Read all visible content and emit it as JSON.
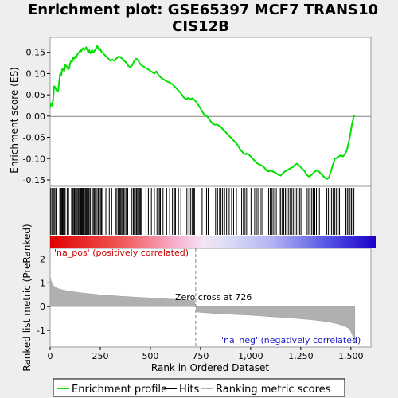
{
  "chart_data": [
    {
      "panel": "enrichment",
      "type": "line",
      "title": "Enrichment plot: GSE65397 MCF7 TRANS10 CIS12B",
      "title_lines": [
        "Enrichment plot: GSE65397 MCF7 TRANS10",
        "CIS12B"
      ],
      "ylabel": "Enrichment score (ES)",
      "xlim": [
        0,
        1600
      ],
      "ylim": [
        -0.165,
        0.185
      ],
      "yticks": [
        -0.15,
        -0.1,
        -0.05,
        0.0,
        0.05,
        0.1,
        0.15
      ],
      "ytick_labels": [
        "-0.15",
        "-0.10",
        "-0.05",
        "0.00",
        "0.05",
        "0.10",
        "0.15"
      ],
      "grid": false,
      "series": [
        {
          "name": "Enrichment profile",
          "color": "#00e000",
          "x": [
            0,
            5,
            10,
            15,
            20,
            25,
            30,
            35,
            40,
            45,
            50,
            55,
            60,
            65,
            70,
            75,
            80,
            85,
            90,
            95,
            100,
            105,
            110,
            115,
            120,
            125,
            130,
            135,
            140,
            145,
            150,
            155,
            160,
            165,
            170,
            175,
            180,
            185,
            190,
            195,
            200,
            205,
            210,
            215,
            220,
            225,
            230,
            235,
            240,
            245,
            250,
            255,
            260,
            265,
            270,
            280,
            290,
            300,
            310,
            320,
            330,
            340,
            350,
            360,
            370,
            380,
            390,
            400,
            410,
            420,
            430,
            440,
            450,
            460,
            470,
            480,
            490,
            500,
            510,
            520,
            530,
            540,
            550,
            560,
            570,
            580,
            590,
            600,
            610,
            620,
            630,
            640,
            650,
            660,
            670,
            680,
            690,
            700,
            710,
            720,
            730,
            740,
            750,
            760,
            770,
            780,
            790,
            800,
            810,
            820,
            830,
            840,
            850,
            860,
            870,
            880,
            890,
            900,
            910,
            920,
            930,
            940,
            950,
            960,
            970,
            980,
            990,
            1000,
            1010,
            1020,
            1030,
            1040,
            1050,
            1060,
            1070,
            1080,
            1090,
            1100,
            1110,
            1120,
            1130,
            1140,
            1150,
            1160,
            1170,
            1180,
            1190,
            1200,
            1210,
            1220,
            1230,
            1240,
            1250,
            1260,
            1270,
            1280,
            1290,
            1300,
            1310,
            1320,
            1330,
            1340,
            1350,
            1360,
            1370,
            1380,
            1390,
            1400,
            1410,
            1420,
            1430,
            1440,
            1450,
            1460,
            1470,
            1480,
            1490,
            1500,
            1505,
            1510,
            1515,
            1520
          ],
          "y": [
            0.02,
            0.03,
            0.025,
            0.04,
            0.07,
            0.068,
            0.062,
            0.058,
            0.06,
            0.08,
            0.1,
            0.095,
            0.11,
            0.112,
            0.105,
            0.12,
            0.118,
            0.115,
            0.11,
            0.112,
            0.125,
            0.13,
            0.128,
            0.138,
            0.135,
            0.14,
            0.137,
            0.145,
            0.148,
            0.15,
            0.155,
            0.152,
            0.158,
            0.16,
            0.155,
            0.158,
            0.162,
            0.156,
            0.15,
            0.155,
            0.148,
            0.152,
            0.155,
            0.15,
            0.152,
            0.156,
            0.16,
            0.165,
            0.16,
            0.155,
            0.158,
            0.152,
            0.15,
            0.148,
            0.145,
            0.14,
            0.136,
            0.13,
            0.133,
            0.13,
            0.135,
            0.14,
            0.138,
            0.135,
            0.13,
            0.125,
            0.118,
            0.115,
            0.12,
            0.13,
            0.135,
            0.13,
            0.122,
            0.118,
            0.115,
            0.112,
            0.11,
            0.106,
            0.103,
            0.1,
            0.105,
            0.097,
            0.092,
            0.088,
            0.085,
            0.082,
            0.08,
            0.078,
            0.075,
            0.07,
            0.065,
            0.06,
            0.055,
            0.048,
            0.042,
            0.04,
            0.043,
            0.04,
            0.042,
            0.038,
            0.032,
            0.025,
            0.018,
            0.01,
            0.002,
            0.0,
            -0.005,
            -0.012,
            -0.018,
            -0.02,
            -0.02,
            -0.022,
            -0.025,
            -0.03,
            -0.035,
            -0.04,
            -0.045,
            -0.05,
            -0.055,
            -0.06,
            -0.065,
            -0.072,
            -0.08,
            -0.085,
            -0.09,
            -0.088,
            -0.09,
            -0.095,
            -0.1,
            -0.105,
            -0.11,
            -0.113,
            -0.115,
            -0.118,
            -0.122,
            -0.128,
            -0.13,
            -0.128,
            -0.13,
            -0.132,
            -0.135,
            -0.138,
            -0.14,
            -0.135,
            -0.13,
            -0.128,
            -0.125,
            -0.122,
            -0.12,
            -0.115,
            -0.112,
            -0.115,
            -0.12,
            -0.125,
            -0.13,
            -0.138,
            -0.142,
            -0.14,
            -0.135,
            -0.13,
            -0.128,
            -0.13,
            -0.135,
            -0.14,
            -0.145,
            -0.148,
            -0.145,
            -0.13,
            -0.115,
            -0.1,
            -0.098,
            -0.095,
            -0.092,
            -0.095,
            -0.09,
            -0.08,
            -0.06,
            -0.035,
            -0.02,
            -0.01,
            0.0,
            0.002
          ]
        }
      ]
    },
    {
      "panel": "hits",
      "type": "scatter",
      "series": [
        {
          "name": "Hits",
          "color": "#000000",
          "x": [
            3,
            9,
            14,
            19,
            24,
            30,
            48,
            52,
            56,
            60,
            63,
            67,
            71,
            75,
            85,
            92,
            107,
            112,
            116,
            121,
            126,
            130,
            135,
            140,
            144,
            149,
            153,
            157,
            161,
            165,
            169,
            174,
            178,
            182,
            186,
            191,
            195,
            201,
            214,
            219,
            223,
            228,
            234,
            240,
            245,
            251,
            256,
            262,
            278,
            295,
            307,
            325,
            330,
            338,
            342,
            347,
            352,
            357,
            362,
            367,
            373,
            380,
            387,
            408,
            415,
            420,
            425,
            431,
            436,
            441,
            446,
            451,
            456,
            478,
            490,
            505,
            520,
            533,
            539,
            545,
            550,
            563,
            581,
            596,
            610,
            620,
            625,
            640,
            652,
            673,
            682,
            692,
            700,
            708,
            716,
            720,
            758,
            780,
            788,
            825,
            835,
            845,
            852,
            860,
            870,
            880,
            893,
            905,
            915,
            929,
            955,
            964,
            972,
            980,
            1002,
            1020,
            1032,
            1040,
            1052,
            1060,
            1082,
            1090,
            1098,
            1105,
            1112,
            1120,
            1128,
            1143,
            1150,
            1158,
            1165,
            1173,
            1180,
            1188,
            1196,
            1204,
            1212,
            1220,
            1228,
            1236,
            1244,
            1251,
            1282,
            1290,
            1297,
            1305,
            1312,
            1320,
            1328,
            1336,
            1343,
            1380,
            1388,
            1396,
            1404,
            1412,
            1420,
            1428,
            1436,
            1443,
            1451,
            1475,
            1482,
            1489,
            1496,
            1503,
            1510,
            1515
          ]
        }
      ]
    },
    {
      "panel": "ranking",
      "type": "area",
      "ylabel": "Ranked list metric (PreRanked)",
      "xlabel": "Rank in Ordered Dataset",
      "xlim": [
        0,
        1600
      ],
      "xticks": [
        0,
        250,
        500,
        750,
        1000,
        1250,
        1500
      ],
      "xtick_labels": [
        "0",
        "250",
        "500",
        "750",
        "1,000",
        "1,250",
        "1,500"
      ],
      "ylim": [
        -1.7,
        2.45
      ],
      "yticks": [
        -1,
        0,
        1,
        2
      ],
      "ytick_labels": [
        "-1",
        "0",
        "1",
        "2"
      ],
      "series": [
        {
          "name": "Ranking metric scores",
          "color": "#b0b0b0",
          "x": [
            0,
            3,
            8,
            15,
            25,
            40,
            60,
            90,
            130,
            180,
            250,
            350,
            450,
            550,
            650,
            720,
            726,
            730,
            760,
            850,
            1000,
            1100,
            1200,
            1300,
            1380,
            1430,
            1470,
            1490,
            1500,
            1508,
            1514,
            1520
          ],
          "y": [
            1.3,
            1.15,
            1.0,
            0.9,
            0.82,
            0.76,
            0.71,
            0.66,
            0.61,
            0.56,
            0.5,
            0.44,
            0.39,
            0.34,
            0.29,
            0.25,
            0.0,
            -0.22,
            -0.25,
            -0.3,
            -0.36,
            -0.42,
            -0.48,
            -0.55,
            -0.63,
            -0.72,
            -0.82,
            -0.92,
            -1.05,
            -1.2,
            -1.4,
            -1.55
          ]
        }
      ],
      "annotations": {
        "zero_cross_label": "Zero cross at 726",
        "zero_cross_x": 726,
        "pos_label": "'na_pos' (positively correlated)",
        "neg_label": "'na_neg' (negatively correlated)",
        "pos_color": "#dd0000",
        "neg_color": "#0000cc"
      }
    }
  ],
  "legend": {
    "placement": "bottom",
    "items": [
      {
        "label": "Enrichment profile",
        "color": "#00e000",
        "icon": "green-line-icon"
      },
      {
        "label": "Hits",
        "color": "#000000",
        "icon": "black-line-icon"
      },
      {
        "label": "Ranking metric scores",
        "color": "#b0b0b0",
        "icon": "gray-line-icon"
      }
    ]
  },
  "colors": {
    "background": "#eeeeee",
    "plot_background": "#ffffff",
    "profile": "#00e000",
    "zero_line": "#808080"
  }
}
